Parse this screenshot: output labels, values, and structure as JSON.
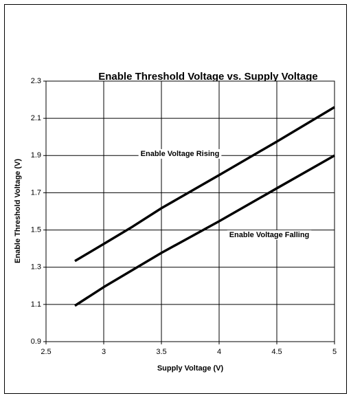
{
  "chart_data": {
    "type": "line",
    "title": "Enable Threshold Voltage vs. Supply Voltage",
    "x_label": "Supply Voltage (V)",
    "y_label": "Enable Threshold Voltage (V)",
    "annotations": [
      "Enable Voltage Rising",
      "Enable Voltage Falling"
    ],
    "x": [
      2.75,
      3.0,
      3.25,
      3.5,
      4.0,
      4.5,
      5.0
    ],
    "series": [
      {
        "name": "Enable Voltage Rising",
        "color": "#000000",
        "values": [
          1.333,
          1.425,
          1.518,
          1.617,
          1.795,
          1.975,
          2.16
        ]
      },
      {
        "name": "Enable Voltage Falling",
        "color": "#000000",
        "values": [
          1.093,
          1.193,
          1.285,
          1.377,
          1.547,
          1.724,
          1.9
        ]
      }
    ],
    "xlim": [
      2.5,
      5
    ],
    "xticks": [
      2.5,
      3,
      3.5,
      4,
      4.5,
      5
    ],
    "ylim": [
      0.9,
      2.3
    ],
    "yticks": [
      0.9,
      1.1,
      1.3,
      1.5,
      1.7,
      1.9,
      2.1,
      2.3
    ],
    "grid": true,
    "legend": false
  }
}
